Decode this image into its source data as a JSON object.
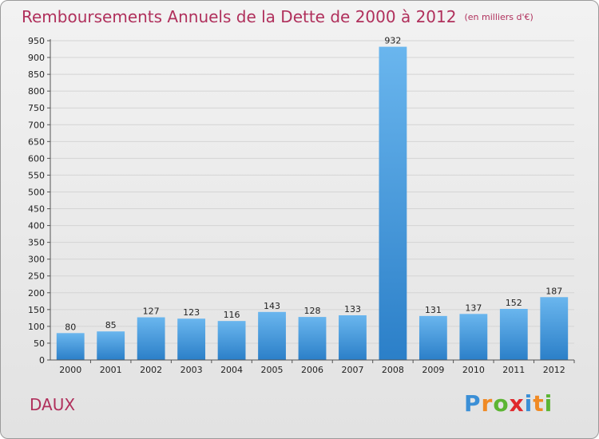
{
  "header": {
    "title": "Remboursements Annuels de la Dette de 2000 à 2012",
    "subtitle": "(en milliers d'€)"
  },
  "footer": {
    "place": "DAUX",
    "logo": {
      "p": "P",
      "r": "r",
      "o": "o",
      "x": "x",
      "i": "i",
      "t": "t",
      "i2": "i"
    }
  },
  "colors": {
    "title": "#b0305c",
    "bar_top": "#6ab6ee",
    "bar_bottom": "#2b7fc8",
    "grid": "#d4d4d4",
    "axis": "#555555"
  },
  "chart_data": {
    "type": "bar",
    "title": "Remboursements Annuels de la Dette de 2000 à 2012",
    "subtitle": "(en milliers d'€)",
    "xlabel": "",
    "ylabel": "",
    "categories": [
      "2000",
      "2001",
      "2002",
      "2003",
      "2004",
      "2005",
      "2006",
      "2007",
      "2008",
      "2009",
      "2010",
      "2011",
      "2012"
    ],
    "values": [
      80,
      85,
      127,
      123,
      116,
      143,
      128,
      133,
      932,
      131,
      137,
      152,
      187
    ],
    "ylim": [
      0,
      950
    ],
    "yticks": [
      0,
      50,
      100,
      150,
      200,
      250,
      300,
      350,
      400,
      450,
      500,
      550,
      600,
      650,
      700,
      750,
      800,
      850,
      900,
      950
    ],
    "grid": true,
    "legend": "none"
  }
}
